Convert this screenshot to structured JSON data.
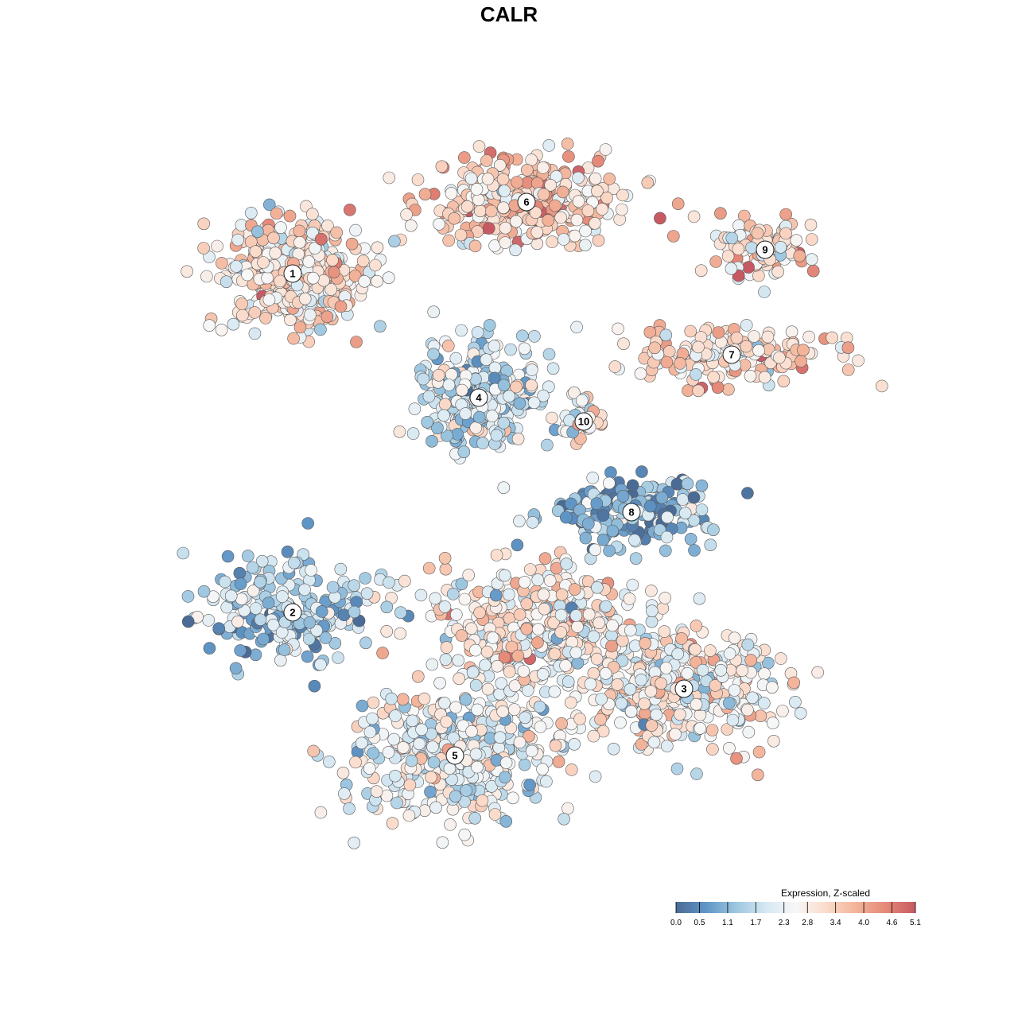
{
  "chart_data": {
    "type": "scatter",
    "title": "CALR",
    "xlabel": "",
    "ylabel": "",
    "grid": false,
    "axes_visible": false,
    "legend": {
      "title": "Expression, Z-scaled",
      "placement": "bottom-right",
      "ticks": [
        "0.0",
        "0.5",
        "1.1",
        "1.7",
        "2.3",
        "2.8",
        "3.4",
        "4.0",
        "4.6",
        "5.1"
      ],
      "range": [
        0.0,
        5.1
      ],
      "colors": [
        "#4a6b96",
        "#5f95c6",
        "#9cc6e0",
        "#d6e8f2",
        "#f7f7f7",
        "#fbdccc",
        "#f3b49a",
        "#e58978",
        "#c75963"
      ]
    },
    "clusters": [
      {
        "label": "1",
        "x": -21.0,
        "y": 25.5,
        "spread": [
          7.0,
          5.0
        ],
        "mean_expression": 2.9,
        "n": 420
      },
      {
        "label": "6",
        "x": 3.5,
        "y": 33.0,
        "spread": [
          9.0,
          3.8
        ],
        "mean_expression": 3.3,
        "n": 380
      },
      {
        "label": "4",
        "x": -1.5,
        "y": 12.5,
        "spread": [
          5.5,
          5.0
        ],
        "mean_expression": 1.9,
        "n": 320
      },
      {
        "label": "9",
        "x": 28.5,
        "y": 28.0,
        "spread": [
          5.0,
          2.8
        ],
        "mean_expression": 3.2,
        "n": 110
      },
      {
        "label": "7",
        "x": 25.0,
        "y": 17.0,
        "spread": [
          11.0,
          3.0
        ],
        "mean_expression": 3.1,
        "n": 170
      },
      {
        "label": "10",
        "x": 9.5,
        "y": 10.0,
        "spread": [
          2.0,
          2.2
        ],
        "mean_expression": 2.5,
        "n": 40
      },
      {
        "label": "8",
        "x": 14.5,
        "y": 0.5,
        "spread": [
          8.0,
          3.2
        ],
        "mean_expression": 1.1,
        "n": 190
      },
      {
        "label": "2",
        "x": -21.0,
        "y": -10.0,
        "spread": [
          8.0,
          5.0
        ],
        "mean_expression": 1.6,
        "n": 220
      },
      {
        "label": "3",
        "x": 20.0,
        "y": -18.0,
        "spread": [
          9.0,
          6.0
        ],
        "mean_expression": 2.6,
        "n": 360
      },
      {
        "label": "5",
        "x": -4.0,
        "y": -25.0,
        "spread": [
          10.0,
          6.0
        ],
        "mean_expression": 2.3,
        "n": 420
      },
      {
        "label": "",
        "x": 5.0,
        "y": -12.0,
        "spread": [
          10.0,
          6.5
        ],
        "mean_expression": 2.7,
        "n": 420
      }
    ]
  }
}
